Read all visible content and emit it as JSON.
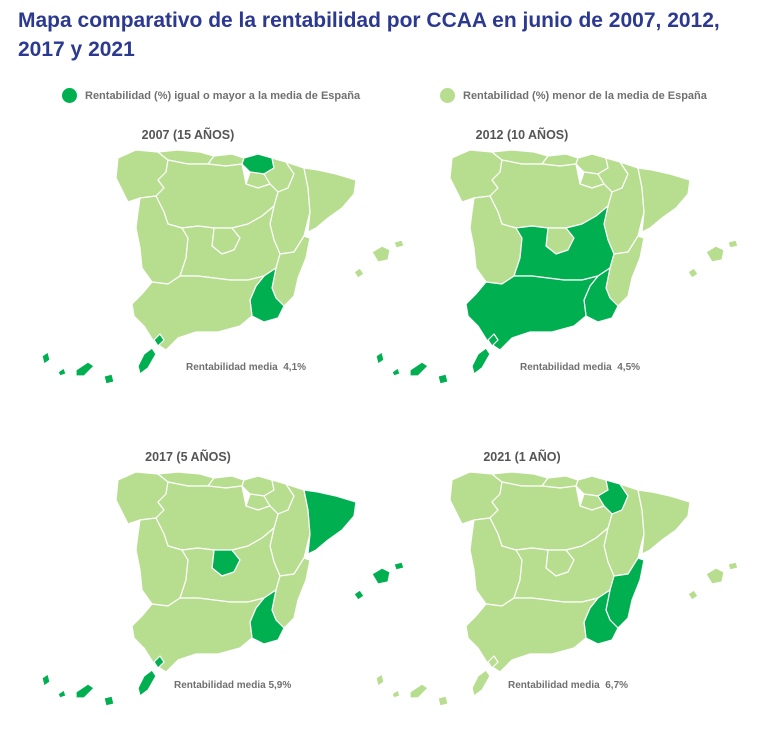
{
  "title": "Mapa comparativo de la rentabilidad por CCAA en junio de 2007, 2012, 2017 y 2021",
  "colors": {
    "above": "#00b050",
    "below": "#b7dd8f",
    "border": "#ffffff"
  },
  "legend": [
    {
      "label": "Rentabilidad (%) igual o mayor a la media de España",
      "color": "#00b050"
    },
    {
      "label": "Rentabilidad (%) menor de la media de España",
      "color": "#b7dd8f"
    }
  ],
  "panels": [
    {
      "title": "2007 (15 AÑOS)",
      "average_label": "Rentabilidad media",
      "average_value": "4,1%",
      "above": [
        "pais-vasco",
        "murcia",
        "canarias"
      ]
    },
    {
      "title": "2012 (10 AÑOS)",
      "average_label": "Rentabilidad media",
      "average_value": "4,5%",
      "above": [
        "castilla-la-mancha",
        "andalucia",
        "murcia",
        "canarias"
      ]
    },
    {
      "title": "2017 (5 AÑOS)",
      "average_label": "Rentabilidad media",
      "average_value": "5,9%",
      "above": [
        "cataluna",
        "madrid",
        "murcia",
        "baleares",
        "canarias"
      ]
    },
    {
      "title": "2021 (1 AÑO)",
      "average_label": "Rentabilidad media",
      "average_value": "6,7%",
      "above": [
        "navarra",
        "valencia",
        "murcia"
      ]
    }
  ]
}
